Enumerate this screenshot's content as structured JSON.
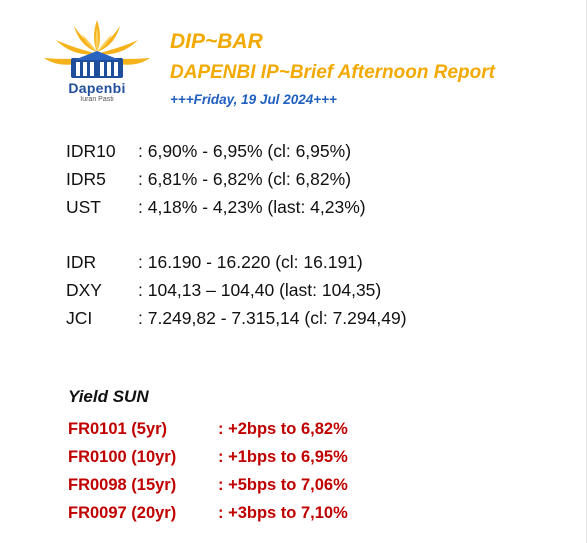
{
  "logo": {
    "name": "Dapenbi",
    "tagline": "Iuran Pasti"
  },
  "header": {
    "title": "DIP~BAR",
    "subtitle": "DAPENBI IP~Brief Afternoon Report",
    "date": "+++Friday, 19 Jul 2024+++"
  },
  "rates": [
    {
      "label": "IDR10",
      "value": ": 6,90% - 6,95% (cl: 6,95%)"
    },
    {
      "label": "IDR5",
      "value": ": 6,81% - 6,82% (cl: 6,82%)"
    },
    {
      "label": "UST",
      "value": ": 4,18% - 4,23% (last: 4,23%)"
    }
  ],
  "markets": [
    {
      "label": "IDR",
      "value": ": 16.190 - 16.220 (cl: 16.191)"
    },
    {
      "label": "DXY",
      "value": ": 104,13 – 104,40 (last: 104,35)"
    },
    {
      "label": "JCI",
      "value": ": 7.249,82 - 7.315,14 (cl: 7.294,49)"
    }
  ],
  "yield_sun": {
    "title": "Yield SUN",
    "items": [
      {
        "bond": "FR0101 (5yr)",
        "change": ": +2bps to 6,82%"
      },
      {
        "bond": "FR0100 (10yr)",
        "change": ": +1bps to 6,95%"
      },
      {
        "bond": "FR0098 (15yr)",
        "change": ": +5bps to 7,06%"
      },
      {
        "bond": "FR0097 (20yr)",
        "change": ": +3bps to 7,10%"
      }
    ]
  },
  "colors": {
    "brand_orange": "#f2a900",
    "brand_blue": "#1f4f9c",
    "date_blue": "#1f5fbf",
    "sun_red": "#c00000"
  }
}
